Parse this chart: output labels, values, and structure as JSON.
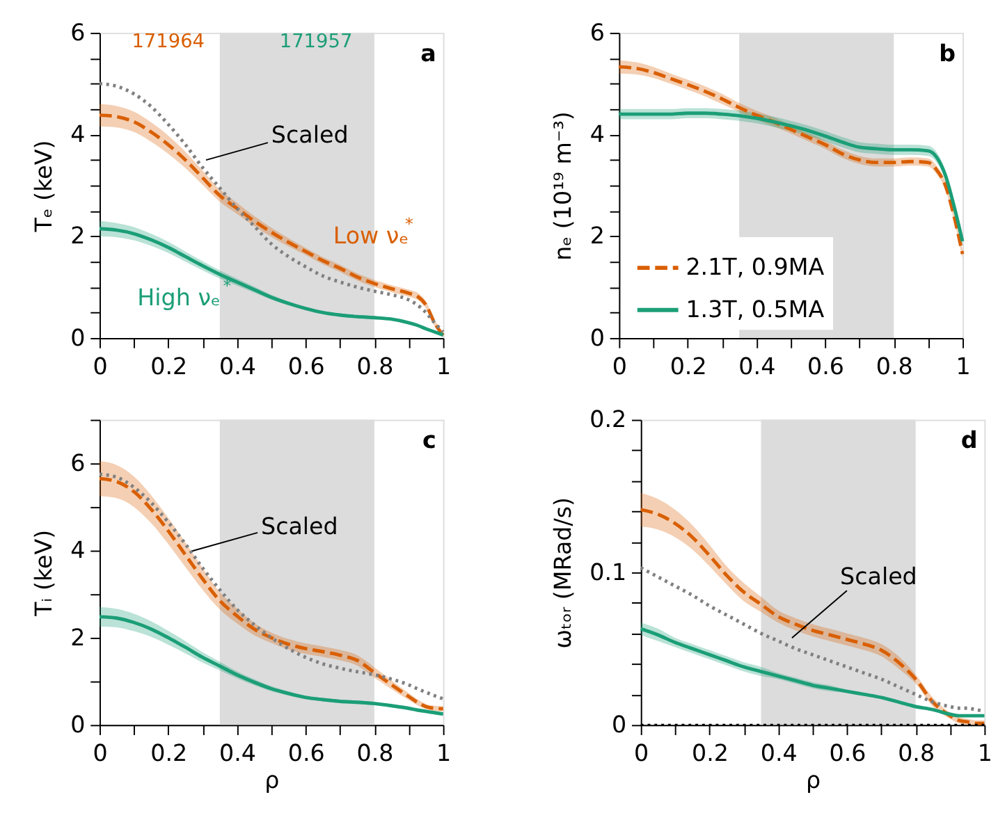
{
  "chart_data": [
    {
      "type": "line",
      "ylabel": "Tₑ (keV)",
      "annotations": [
        "171964",
        "171957",
        "a"
      ],
      "x": [
        0,
        0.05,
        0.1,
        0.15,
        0.2,
        0.25,
        0.3,
        0.35,
        0.4,
        0.45,
        0.5,
        0.55,
        0.6,
        0.65,
        0.7,
        0.75,
        0.8,
        0.85,
        0.9,
        0.925,
        0.95,
        0.975,
        1
      ],
      "series": [
        {
          "name": "Low νₑ$^{*}$",
          "color": "#d95f02",
          "line_style": "dashed",
          "values": [
            4.38,
            4.35,
            4.25,
            4.05,
            3.8,
            3.5,
            3.15,
            2.8,
            2.55,
            2.3,
            2.08,
            1.88,
            1.7,
            1.52,
            1.37,
            1.2,
            1.07,
            0.97,
            0.88,
            0.82,
            0.65,
            0.3,
            0.05
          ],
          "lower": [
            4.16,
            4.14,
            4.05,
            3.86,
            3.62,
            3.34,
            3.01,
            2.68,
            2.44,
            2.2,
            1.99,
            1.8,
            1.63,
            1.45,
            1.3,
            1.13,
            1.0,
            0.9,
            0.81,
            0.75,
            0.58,
            0.24,
            0.01
          ],
          "upper": [
            4.6,
            4.56,
            4.45,
            4.24,
            3.98,
            3.66,
            3.29,
            2.92,
            2.66,
            2.4,
            2.17,
            1.96,
            1.77,
            1.59,
            1.44,
            1.27,
            1.14,
            1.04,
            0.95,
            0.89,
            0.72,
            0.36,
            0.1
          ]
        },
        {
          "name": "High νₑ$^{*}$",
          "color": "#1b9e77",
          "line_style": "solid",
          "values": [
            2.15,
            2.12,
            2.05,
            1.93,
            1.78,
            1.6,
            1.42,
            1.25,
            1.1,
            0.95,
            0.8,
            0.68,
            0.58,
            0.5,
            0.45,
            0.42,
            0.4,
            0.37,
            0.3,
            0.25,
            0.18,
            0.12,
            0.06
          ],
          "lower": [
            2.0,
            1.98,
            1.92,
            1.81,
            1.67,
            1.5,
            1.33,
            1.17,
            1.03,
            0.89,
            0.75,
            0.64,
            0.55,
            0.47,
            0.42,
            0.39,
            0.37,
            0.34,
            0.27,
            0.22,
            0.15,
            0.09,
            0.03
          ],
          "upper": [
            2.3,
            2.26,
            2.18,
            2.05,
            1.89,
            1.7,
            1.51,
            1.33,
            1.17,
            1.01,
            0.85,
            0.72,
            0.61,
            0.53,
            0.48,
            0.45,
            0.43,
            0.4,
            0.33,
            0.28,
            0.21,
            0.15,
            0.09
          ]
        },
        {
          "name": "Scaled",
          "color": "#808080",
          "line_style": "dotted",
          "values": [
            5.0,
            4.95,
            4.8,
            4.55,
            4.2,
            3.8,
            3.35,
            2.95,
            2.55,
            2.2,
            1.85,
            1.6,
            1.4,
            1.22,
            1.1,
            1.0,
            0.92,
            0.85,
            0.75,
            0.65,
            0.5,
            0.3,
            0.12
          ]
        }
      ],
      "bands": [
        {
          "axis": "x",
          "from": 0.35,
          "to": 0.8,
          "color": "#dcdcdc"
        }
      ],
      "xlim": [
        0,
        1
      ],
      "xticks": [
        0,
        {
          "value": 0.1,
          "label": null
        },
        0.2,
        {
          "value": 0.3,
          "label": null
        },
        0.4,
        {
          "value": 0.5,
          "label": null
        },
        0.6,
        {
          "value": 0.7,
          "label": null
        },
        0.8,
        {
          "value": 0.9,
          "label": null
        },
        1
      ],
      "ylim": [
        0,
        6
      ],
      "yticks": [
        0,
        {
          "value": 0.5,
          "label": null
        },
        {
          "value": 1,
          "label": null
        },
        {
          "value": 1.5,
          "label": null
        },
        2,
        {
          "value": 2.5,
          "label": null
        },
        {
          "value": 3,
          "label": null
        },
        {
          "value": 3.5,
          "label": null
        },
        4,
        {
          "value": 4.5,
          "label": null
        },
        {
          "value": 5,
          "label": null
        },
        {
          "value": 5.5,
          "label": null
        },
        6
      ],
      "grid": false,
      "legend": false
    },
    {
      "type": "line",
      "ylabel": "nₑ (10¹⁹ m⁻³)",
      "annotations": [
        "b"
      ],
      "x": [
        0,
        0.05,
        0.1,
        0.15,
        0.2,
        0.25,
        0.3,
        0.35,
        0.4,
        0.45,
        0.5,
        0.55,
        0.6,
        0.65,
        0.7,
        0.75,
        0.8,
        0.85,
        0.9,
        0.925,
        0.95,
        0.975,
        1
      ],
      "series": [
        {
          "name": "2.1T, 0.9MA",
          "color": "#d95f02",
          "line_style": "dashed",
          "values": [
            5.33,
            5.3,
            5.22,
            5.1,
            4.98,
            4.85,
            4.7,
            4.53,
            4.38,
            4.25,
            4.1,
            3.95,
            3.8,
            3.62,
            3.5,
            3.45,
            3.45,
            3.47,
            3.45,
            3.3,
            3.0,
            2.4,
            1.65
          ],
          "lower": [
            5.2,
            5.18,
            5.11,
            5.0,
            4.88,
            4.75,
            4.6,
            4.44,
            4.29,
            4.16,
            4.02,
            3.87,
            3.72,
            3.54,
            3.42,
            3.37,
            3.37,
            3.39,
            3.37,
            3.22,
            2.92,
            2.32,
            1.57
          ],
          "upper": [
            5.46,
            5.42,
            5.33,
            5.2,
            5.08,
            4.95,
            4.8,
            4.62,
            4.47,
            4.34,
            4.18,
            4.03,
            3.88,
            3.7,
            3.58,
            3.53,
            3.53,
            3.55,
            3.53,
            3.38,
            3.08,
            2.48,
            1.73
          ]
        },
        {
          "name": "1.3T, 0.5MA",
          "color": "#1b9e77",
          "line_style": "solid",
          "values": [
            4.4,
            4.4,
            4.4,
            4.4,
            4.42,
            4.42,
            4.4,
            4.37,
            4.32,
            4.25,
            4.17,
            4.08,
            3.97,
            3.85,
            3.75,
            3.72,
            3.7,
            3.7,
            3.68,
            3.55,
            3.2,
            2.6,
            1.9
          ],
          "lower": [
            4.3,
            4.3,
            4.3,
            4.3,
            4.32,
            4.32,
            4.3,
            4.27,
            4.22,
            4.15,
            4.07,
            3.98,
            3.87,
            3.75,
            3.65,
            3.62,
            3.6,
            3.6,
            3.58,
            3.45,
            3.1,
            2.5,
            1.8
          ],
          "upper": [
            4.5,
            4.5,
            4.5,
            4.5,
            4.52,
            4.52,
            4.5,
            4.47,
            4.42,
            4.35,
            4.27,
            4.18,
            4.07,
            3.95,
            3.85,
            3.82,
            3.8,
            3.8,
            3.78,
            3.65,
            3.3,
            2.7,
            2.0
          ]
        }
      ],
      "bands": [
        {
          "axis": "x",
          "from": 0.35,
          "to": 0.8,
          "color": "#dcdcdc"
        }
      ],
      "xlim": [
        0,
        1
      ],
      "xticks": [
        0,
        {
          "value": 0.1,
          "label": null
        },
        0.2,
        {
          "value": 0.3,
          "label": null
        },
        0.4,
        {
          "value": 0.5,
          "label": null
        },
        0.6,
        {
          "value": 0.7,
          "label": null
        },
        0.8,
        {
          "value": 0.9,
          "label": null
        },
        1
      ],
      "ylim": [
        0,
        6
      ],
      "yticks": [
        0,
        {
          "value": 0.5,
          "label": null
        },
        {
          "value": 1,
          "label": null
        },
        {
          "value": 1.5,
          "label": null
        },
        2,
        {
          "value": 2.5,
          "label": null
        },
        {
          "value": 3,
          "label": null
        },
        {
          "value": 3.5,
          "label": null
        },
        4,
        {
          "value": 4.5,
          "label": null
        },
        {
          "value": 5,
          "label": null
        },
        {
          "value": 5.5,
          "label": null
        },
        6
      ],
      "grid": false,
      "legend": "bottom left"
    },
    {
      "type": "line",
      "xlabel": "ρ",
      "ylabel": "Tᵢ (keV)",
      "annotations": [
        "c"
      ],
      "x": [
        0,
        0.05,
        0.1,
        0.15,
        0.2,
        0.25,
        0.3,
        0.35,
        0.4,
        0.45,
        0.5,
        0.55,
        0.6,
        0.65,
        0.7,
        0.75,
        0.8,
        0.85,
        0.9,
        0.925,
        0.95,
        0.975,
        1
      ],
      "series": [
        {
          "color": "#d95f02",
          "line_style": "dashed",
          "values": [
            5.65,
            5.58,
            5.35,
            4.95,
            4.45,
            3.9,
            3.35,
            2.85,
            2.5,
            2.2,
            2.0,
            1.85,
            1.75,
            1.68,
            1.6,
            1.48,
            1.2,
            0.92,
            0.65,
            0.52,
            0.42,
            0.38,
            0.37
          ],
          "lower": [
            5.25,
            5.2,
            5.0,
            4.63,
            4.15,
            3.62,
            3.1,
            2.65,
            2.33,
            2.06,
            1.88,
            1.73,
            1.63,
            1.56,
            1.48,
            1.36,
            1.08,
            0.82,
            0.57,
            0.45,
            0.36,
            0.32,
            0.31
          ],
          "upper": [
            6.05,
            5.96,
            5.7,
            5.27,
            4.75,
            4.18,
            3.6,
            3.05,
            2.67,
            2.34,
            2.12,
            1.97,
            1.87,
            1.8,
            1.72,
            1.6,
            1.32,
            1.02,
            0.73,
            0.59,
            0.48,
            0.44,
            0.43
          ]
        },
        {
          "color": "#1b9e77",
          "line_style": "solid",
          "values": [
            2.48,
            2.45,
            2.35,
            2.2,
            2.0,
            1.78,
            1.55,
            1.35,
            1.15,
            0.98,
            0.83,
            0.72,
            0.63,
            0.58,
            0.54,
            0.52,
            0.49,
            0.44,
            0.38,
            0.34,
            0.31,
            0.28,
            0.25
          ],
          "lower": [
            2.26,
            2.24,
            2.15,
            2.02,
            1.84,
            1.64,
            1.43,
            1.25,
            1.07,
            0.91,
            0.77,
            0.67,
            0.59,
            0.54,
            0.5,
            0.48,
            0.45,
            0.4,
            0.34,
            0.3,
            0.27,
            0.24,
            0.21
          ],
          "upper": [
            2.7,
            2.66,
            2.55,
            2.38,
            2.16,
            1.92,
            1.67,
            1.45,
            1.23,
            1.05,
            0.89,
            0.77,
            0.67,
            0.62,
            0.58,
            0.56,
            0.53,
            0.48,
            0.42,
            0.38,
            0.35,
            0.32,
            0.29
          ]
        },
        {
          "name": "Scaled",
          "color": "#808080",
          "line_style": "dotted",
          "values": [
            5.75,
            5.68,
            5.45,
            5.1,
            4.65,
            4.15,
            3.6,
            3.1,
            2.65,
            2.3,
            2.0,
            1.75,
            1.55,
            1.4,
            1.3,
            1.22,
            1.15,
            1.05,
            0.92,
            0.83,
            0.75,
            0.67,
            0.6
          ]
        }
      ],
      "bands": [
        {
          "axis": "x",
          "from": 0.35,
          "to": 0.8,
          "color": "#dcdcdc"
        }
      ],
      "xlim": [
        0,
        1
      ],
      "xticks": [
        0,
        {
          "value": 0.1,
          "label": null
        },
        0.2,
        {
          "value": 0.3,
          "label": null
        },
        0.4,
        {
          "value": 0.5,
          "label": null
        },
        0.6,
        {
          "value": 0.7,
          "label": null
        },
        0.8,
        {
          "value": 0.9,
          "label": null
        },
        1
      ],
      "ylim": [
        0,
        7
      ],
      "yticks": [
        0,
        {
          "value": 1,
          "label": null
        },
        2,
        {
          "value": 3,
          "label": null
        },
        4,
        {
          "value": 5,
          "label": null
        },
        6,
        {
          "value": 7,
          "label": null
        }
      ],
      "grid": false,
      "legend": false
    },
    {
      "type": "line",
      "xlabel": "ρ",
      "ylabel": "ωₜₒᵣ (MRad/s)",
      "annotations": [
        "d"
      ],
      "x": [
        0,
        0.05,
        0.1,
        0.15,
        0.2,
        0.25,
        0.3,
        0.35,
        0.4,
        0.45,
        0.5,
        0.55,
        0.6,
        0.65,
        0.7,
        0.75,
        0.8,
        0.85,
        0.9,
        0.925,
        0.95,
        0.975,
        1
      ],
      "series": [
        {
          "color": "#d95f02",
          "line_style": "dashed",
          "values": [
            0.141,
            0.138,
            0.132,
            0.123,
            0.111,
            0.098,
            0.087,
            0.079,
            0.071,
            0.066,
            0.062,
            0.059,
            0.056,
            0.053,
            0.049,
            0.041,
            0.03,
            0.015,
            0.006,
            0.003,
            0.002,
            0.001,
            0.001
          ],
          "lower": [
            0.13,
            0.128,
            0.123,
            0.115,
            0.104,
            0.092,
            0.081,
            0.074,
            0.067,
            0.062,
            0.058,
            0.055,
            0.052,
            0.049,
            0.045,
            0.037,
            0.027,
            0.012,
            0.004,
            0.001,
            0.0,
            0.0,
            0.0
          ],
          "upper": [
            0.152,
            0.148,
            0.141,
            0.131,
            0.118,
            0.104,
            0.093,
            0.084,
            0.075,
            0.07,
            0.066,
            0.063,
            0.06,
            0.057,
            0.053,
            0.045,
            0.033,
            0.018,
            0.008,
            0.005,
            0.004,
            0.003,
            0.003
          ]
        },
        {
          "color": "#1b9e77",
          "line_style": "solid",
          "values": [
            0.063,
            0.059,
            0.054,
            0.05,
            0.046,
            0.042,
            0.038,
            0.035,
            0.032,
            0.029,
            0.026,
            0.024,
            0.022,
            0.02,
            0.018,
            0.015,
            0.012,
            0.01,
            0.007,
            0.006,
            0.006,
            0.006,
            0.006
          ],
          "lower": [
            0.059,
            0.055,
            0.051,
            0.047,
            0.043,
            0.039,
            0.035,
            0.032,
            0.03,
            0.027,
            0.024,
            0.022,
            0.021,
            0.019,
            0.017,
            0.014,
            0.011,
            0.009,
            0.006,
            0.005,
            0.005,
            0.005,
            0.005
          ],
          "upper": [
            0.067,
            0.063,
            0.057,
            0.053,
            0.049,
            0.045,
            0.041,
            0.038,
            0.034,
            0.031,
            0.028,
            0.026,
            0.023,
            0.021,
            0.019,
            0.016,
            0.013,
            0.011,
            0.008,
            0.007,
            0.007,
            0.007,
            0.007
          ]
        },
        {
          "name": "Scaled",
          "color": "#808080",
          "line_style": "dotted",
          "values": [
            0.103,
            0.097,
            0.091,
            0.085,
            0.078,
            0.072,
            0.066,
            0.06,
            0.055,
            0.05,
            0.046,
            0.042,
            0.038,
            0.034,
            0.03,
            0.025,
            0.02,
            0.015,
            0.012,
            0.011,
            0.011,
            0.01,
            0.009
          ]
        }
      ],
      "bands": [
        {
          "axis": "x",
          "from": 0.35,
          "to": 0.8,
          "color": "#dcdcdc"
        }
      ],
      "ref_lines": [
        {
          "axis": "y",
          "value": 0,
          "label": null,
          "color": "#000000",
          "line_style": "dotted"
        }
      ],
      "xlim": [
        0,
        1
      ],
      "xticks": [
        0,
        {
          "value": 0.1,
          "label": null
        },
        0.2,
        {
          "value": 0.3,
          "label": null
        },
        0.4,
        {
          "value": 0.5,
          "label": null
        },
        0.6,
        {
          "value": 0.7,
          "label": null
        },
        0.8,
        {
          "value": 0.9,
          "label": null
        },
        1
      ],
      "ylim": [
        0,
        0.2
      ],
      "yticks": [
        0,
        {
          "value": 0.02,
          "label": null
        },
        {
          "value": 0.04,
          "label": null
        },
        {
          "value": 0.06,
          "label": null
        },
        {
          "value": 0.08,
          "label": null
        },
        0.1,
        {
          "value": 0.12,
          "label": null
        },
        {
          "value": 0.14,
          "label": null
        },
        {
          "value": 0.16,
          "label": null
        },
        {
          "value": 0.18,
          "label": null
        },
        0.2
      ],
      "grid": false,
      "legend": false
    }
  ]
}
